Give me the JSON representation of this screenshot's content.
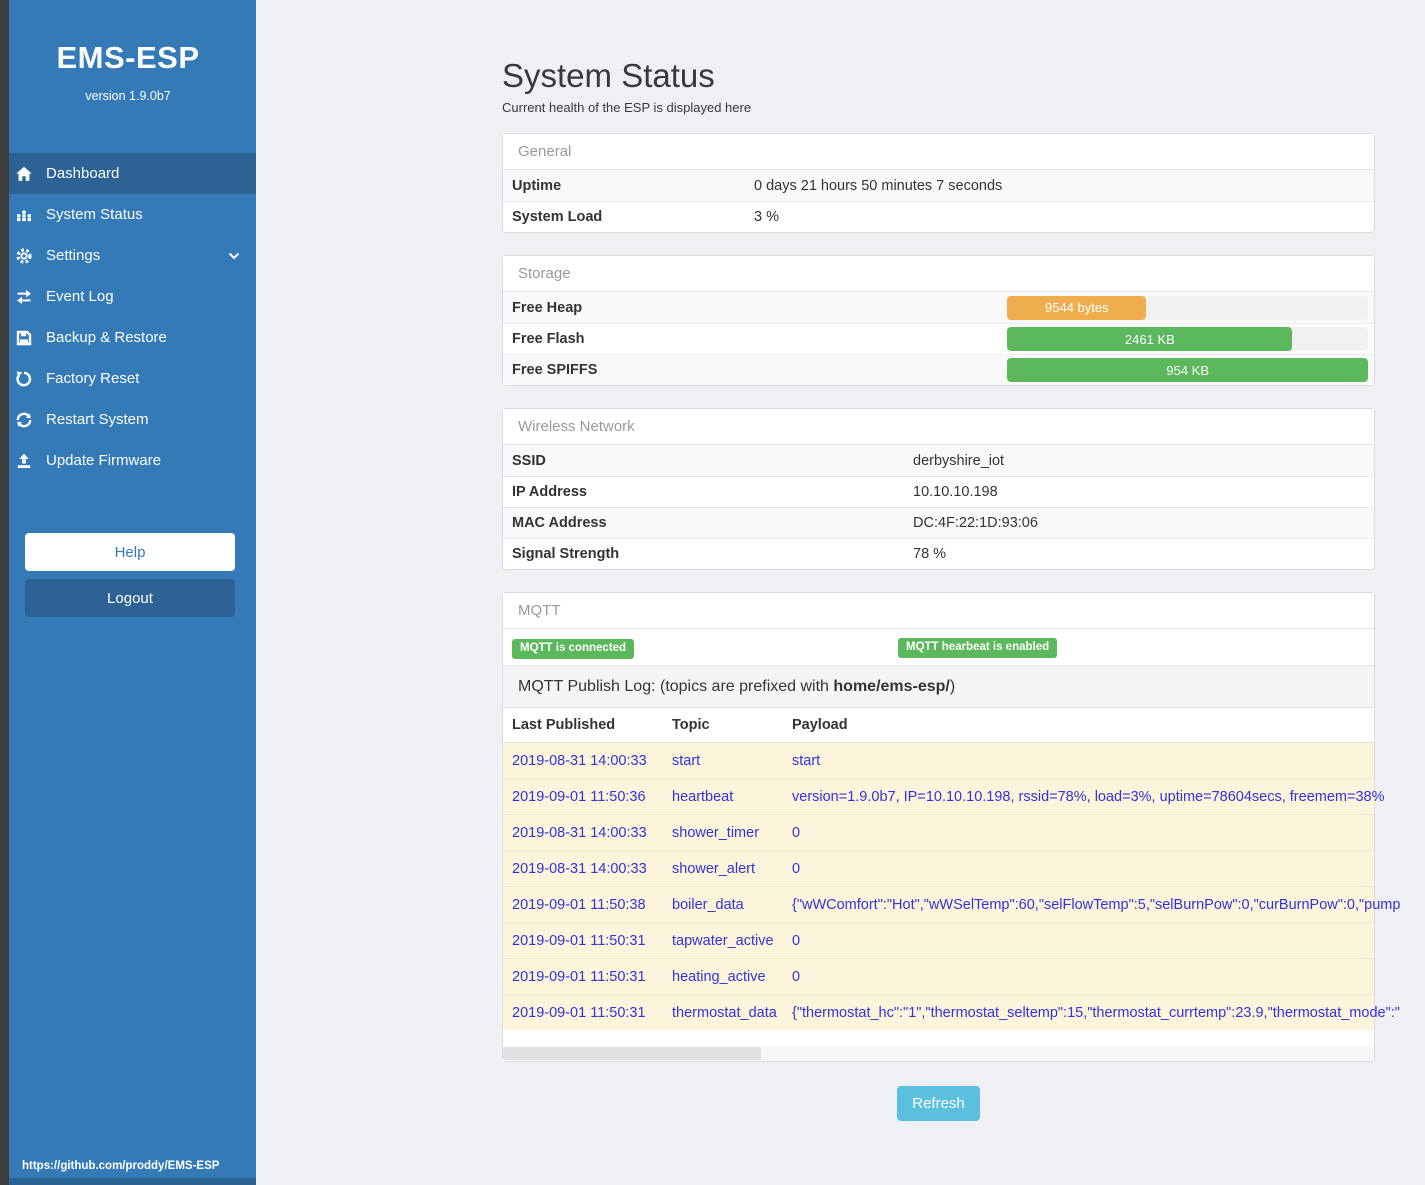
{
  "sidebar": {
    "title": "EMS-ESP",
    "version": "version 1.9.0b7",
    "nav": [
      {
        "label": "Dashboard",
        "icon": "home-icon",
        "active": true
      },
      {
        "label": "System Status",
        "icon": "system-status-icon"
      },
      {
        "label": "Settings",
        "icon": "gear-icon",
        "chevron": true
      },
      {
        "label": "Event Log",
        "icon": "exchange-icon"
      },
      {
        "label": "Backup & Restore",
        "icon": "save-icon"
      },
      {
        "label": "Factory Reset",
        "icon": "undo-icon"
      },
      {
        "label": "Restart System",
        "icon": "sync-icon"
      },
      {
        "label": "Update Firmware",
        "icon": "upload-icon"
      }
    ],
    "help_label": "Help",
    "logout_label": "Logout",
    "footer_url": "https://github.com/proddy/EMS-ESP"
  },
  "page": {
    "title": "System Status",
    "subtitle": "Current health of the ESP is displayed here",
    "refresh_label": "Refresh"
  },
  "panels": {
    "general": {
      "title": "General",
      "rows": [
        {
          "label": "Uptime",
          "value": "0 days 21 hours 50 minutes 7 seconds"
        },
        {
          "label": "System Load",
          "value": "3 %"
        }
      ]
    },
    "storage": {
      "title": "Storage",
      "rows": [
        {
          "label": "Free Heap",
          "value": "9544 bytes",
          "percent": 38.5,
          "color": "#f0ad4e"
        },
        {
          "label": "Free Flash",
          "value": "2461 KB",
          "percent": 79,
          "color": "#5cb85c"
        },
        {
          "label": "Free SPIFFS",
          "value": "954 KB",
          "percent": 100,
          "color": "#5cb85c"
        }
      ]
    },
    "wireless": {
      "title": "Wireless Network",
      "rows": [
        {
          "label": "SSID",
          "value": "derbyshire_iot"
        },
        {
          "label": "IP Address",
          "value": "10.10.10.198"
        },
        {
          "label": "MAC Address",
          "value": "DC:4F:22:1D:93:06"
        },
        {
          "label": "Signal Strength",
          "value": "78 %"
        }
      ]
    },
    "mqtt": {
      "title": "MQTT",
      "badges": [
        "MQTT is connected",
        "MQTT hearbeat is enabled"
      ],
      "publish_log_text": "MQTT Publish Log: (topics are prefixed with ",
      "publish_log_bold": "home/ems-esp/",
      "publish_log_suffix": ")",
      "table": {
        "headers": [
          "Last Published",
          "Topic",
          "Payload"
        ],
        "rows": [
          [
            "2019-08-31 14:00:33",
            "start",
            "start"
          ],
          [
            "2019-09-01 11:50:36",
            "heartbeat",
            "version=1.9.0b7, IP=10.10.10.198, rssid=78%, load=3%, uptime=78604secs, freemem=38%"
          ],
          [
            "2019-08-31 14:00:33",
            "shower_timer",
            "0"
          ],
          [
            "2019-08-31 14:00:33",
            "shower_alert",
            "0"
          ],
          [
            "2019-09-01 11:50:38",
            "boiler_data",
            "{\"wWComfort\":\"Hot\",\"wWSelTemp\":60,\"selFlowTemp\":5,\"selBurnPow\":0,\"curBurnPow\":0,\"pump"
          ],
          [
            "2019-09-01 11:50:31",
            "tapwater_active",
            "0"
          ],
          [
            "2019-09-01 11:50:31",
            "heating_active",
            "0"
          ],
          [
            "2019-09-01 11:50:31",
            "thermostat_data",
            "{\"thermostat_hc\":\"1\",\"thermostat_seltemp\":15,\"thermostat_currtemp\":23.9,\"thermostat_mode\":\""
          ]
        ]
      }
    }
  },
  "colors": {
    "sidebar": "#337ab7",
    "sidebar_active": "#2c6394",
    "success": "#5cb85c",
    "warning": "#f0ad4e",
    "info": "#5bc0de",
    "link_blue": "#3232d8",
    "row_warning_bg": "#fcf5dc"
  }
}
